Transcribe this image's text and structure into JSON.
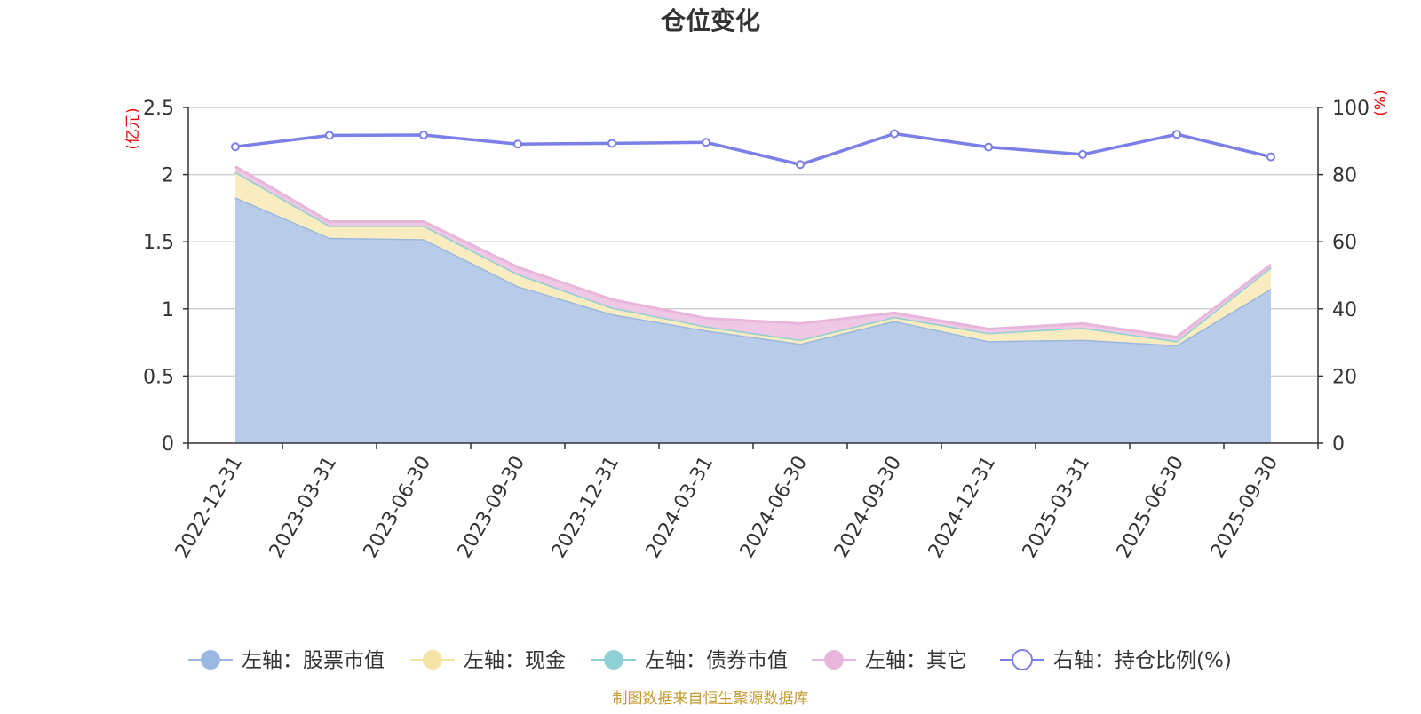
{
  "chart_data": {
    "type": "area",
    "title": "仓位变化",
    "left_unit": "(亿元)",
    "right_unit": "(%)",
    "ylim_left": [
      0,
      2.5
    ],
    "ylim_right": [
      0,
      100
    ],
    "left_ticks": [
      "0",
      "0.5",
      "1",
      "1.5",
      "2",
      "2.5"
    ],
    "right_ticks": [
      "0",
      "20",
      "40",
      "60",
      "80",
      "100"
    ],
    "categories": [
      "2022-12-31",
      "2023-03-31",
      "2023-06-30",
      "2023-09-30",
      "2023-12-31",
      "2024-03-31",
      "2024-06-30",
      "2024-09-30",
      "2024-12-31",
      "2025-03-31",
      "2025-06-30",
      "2025-09-30"
    ],
    "series": [
      {
        "name": "左轴：股票市值",
        "axis": "left",
        "stack": true,
        "color": "#9bb8e0",
        "fill": "#b8cce9",
        "values": [
          1.83,
          1.53,
          1.52,
          1.17,
          0.96,
          0.84,
          0.74,
          0.91,
          0.76,
          0.77,
          0.73,
          1.15
        ]
      },
      {
        "name": "左轴：现金",
        "axis": "left",
        "stack": true,
        "color": "#f6e4a6",
        "fill": "#f8ecc0",
        "values": [
          0.19,
          0.09,
          0.1,
          0.09,
          0.05,
          0.03,
          0.03,
          0.03,
          0.06,
          0.09,
          0.03,
          0.16
        ]
      },
      {
        "name": "左轴：债券市值",
        "axis": "left",
        "stack": true,
        "color": "#8fd0d4",
        "fill": "#bde3e6",
        "values": [
          0,
          0,
          0,
          0,
          0,
          0,
          0,
          0,
          0,
          0,
          0,
          0
        ]
      },
      {
        "name": "左轴：其它",
        "axis": "left",
        "stack": true,
        "color": "#e8b6da",
        "fill": "#eec8e4",
        "values": [
          0.04,
          0.03,
          0.03,
          0.05,
          0.06,
          0.06,
          0.12,
          0.03,
          0.03,
          0.03,
          0.03,
          0.02
        ]
      },
      {
        "name": "右轴：持仓比例(%)",
        "axis": "right",
        "stack": false,
        "color": "#7b7fe8",
        "fill": "#ffffff",
        "values": [
          88.3,
          91.7,
          91.8,
          89.1,
          89.3,
          89.6,
          83.0,
          92.2,
          88.2,
          86.0,
          92.0,
          85.3
        ]
      }
    ],
    "legend_position": "bottom",
    "source": "制图数据来自恒生聚源数据库"
  }
}
